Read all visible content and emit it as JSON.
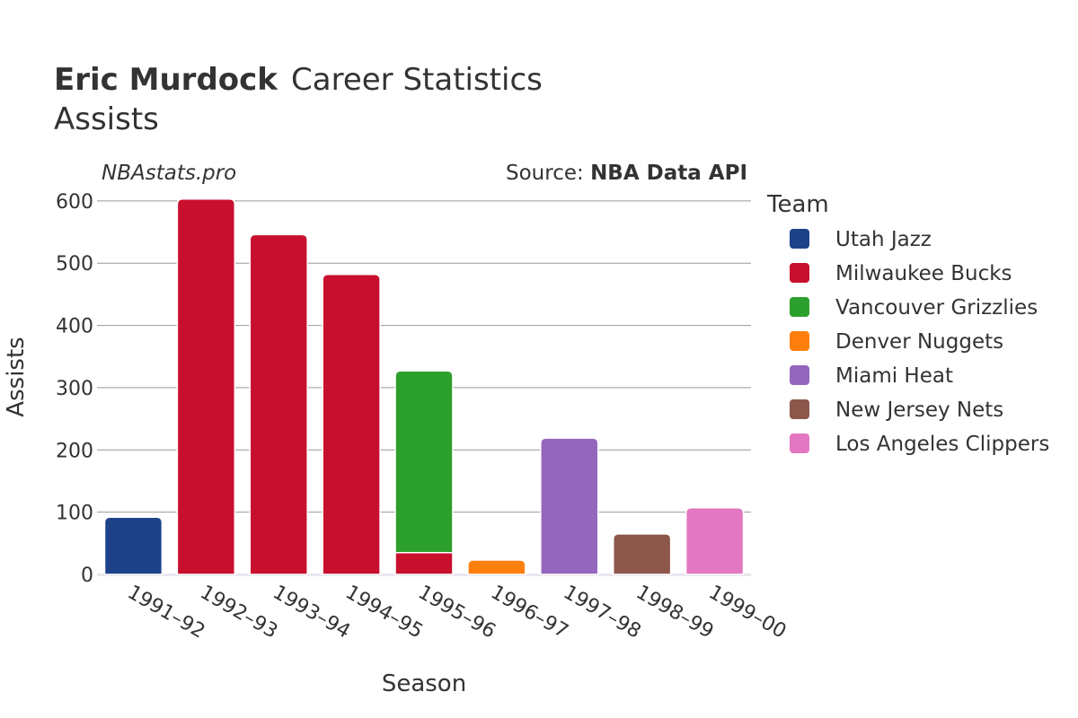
{
  "header": {
    "title_bold": "Eric Murdock",
    "title_rest": "Career Statistics",
    "subtitle": "Assists"
  },
  "watermark": "NBAstats.pro",
  "source": {
    "prefix": "Source: ",
    "name": "NBA Data API"
  },
  "legend": {
    "title": "Team"
  },
  "chart_data": {
    "type": "bar",
    "stacked": true,
    "xlabel": "Season",
    "ylabel": "Assists",
    "ylim": [
      0,
      620
    ],
    "yticks": [
      0,
      100,
      200,
      300,
      400,
      500,
      600
    ],
    "grid": true,
    "legend_position": "right",
    "categories": [
      "1991–92",
      "1992–93",
      "1993–94",
      "1994–95",
      "1995–96",
      "1996–97",
      "1997–98",
      "1998–99",
      "1999–00"
    ],
    "series": [
      {
        "name": "Utah Jazz",
        "color": "#1d428a",
        "values": [
          92,
          0,
          0,
          0,
          0,
          0,
          0,
          0,
          0
        ]
      },
      {
        "name": "Milwaukee Bucks",
        "color": "#c8102e",
        "values": [
          0,
          603,
          546,
          482,
          35,
          0,
          0,
          0,
          0
        ]
      },
      {
        "name": "Vancouver Grizzlies",
        "color": "#2ca02c",
        "values": [
          0,
          0,
          0,
          0,
          292,
          0,
          0,
          0,
          0
        ]
      },
      {
        "name": "Denver Nuggets",
        "color": "#ff7f0e",
        "values": [
          0,
          0,
          0,
          0,
          0,
          23,
          0,
          0,
          0
        ]
      },
      {
        "name": "Miami Heat",
        "color": "#9467bd",
        "values": [
          0,
          0,
          0,
          0,
          0,
          0,
          219,
          0,
          0
        ]
      },
      {
        "name": "New Jersey Nets",
        "color": "#8c564b",
        "values": [
          0,
          0,
          0,
          0,
          0,
          0,
          0,
          65,
          0
        ]
      },
      {
        "name": "Los Angeles Clippers",
        "color": "#e377c2",
        "values": [
          0,
          0,
          0,
          0,
          0,
          0,
          0,
          0,
          107
        ]
      }
    ]
  }
}
